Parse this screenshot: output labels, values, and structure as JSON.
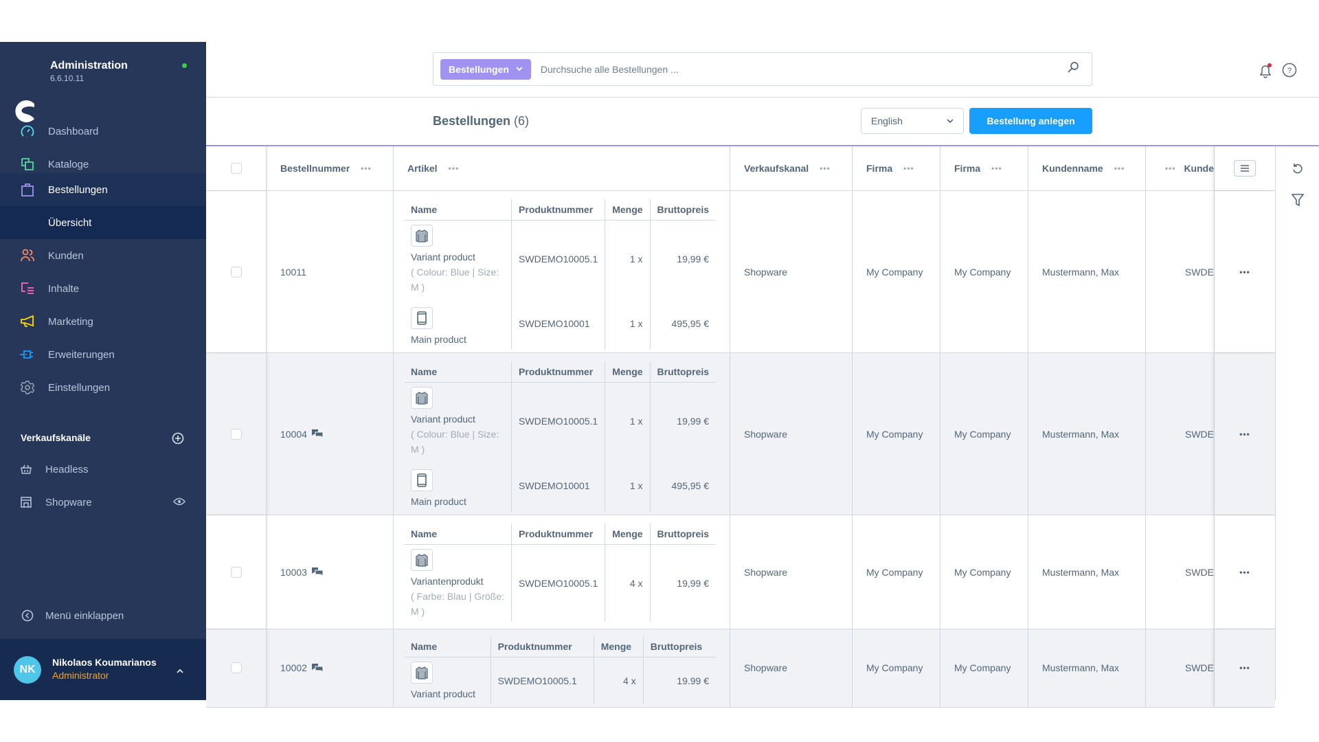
{
  "colors": {
    "sidebar": "#26375a",
    "accent": "#a092f0",
    "primary": "#189eff",
    "status_online": "#37d046",
    "user_role": "#f7a21b",
    "notification_dot": "#de294c"
  },
  "sidebar": {
    "app_title": "Administration",
    "version": "6.6.10.11",
    "items": [
      {
        "label": "Dashboard",
        "icon": "gauge-icon",
        "color": "#57d9f0"
      },
      {
        "label": "Kataloge",
        "icon": "products-icon",
        "color": "#57d9a3"
      },
      {
        "label": "Bestellungen",
        "icon": "shopping-bag-icon",
        "color": "#a092f0",
        "active": true
      },
      {
        "label": "Übersicht",
        "sub": true
      },
      {
        "label": "Kunden",
        "icon": "users-icon",
        "color": "#f88962"
      },
      {
        "label": "Inhalte",
        "icon": "content-icon",
        "color": "#ff68b4"
      },
      {
        "label": "Marketing",
        "icon": "megaphone-icon",
        "color": "#ffd700"
      },
      {
        "label": "Erweiterungen",
        "icon": "plug-icon",
        "color": "#189eff"
      },
      {
        "label": "Einstellungen",
        "icon": "gear-icon",
        "color": "#9aa8b5"
      }
    ],
    "sales_channels_title": "Verkaufskanäle",
    "sales_channels": [
      {
        "label": "Headless",
        "icon": "basket-icon"
      },
      {
        "label": "Shopware",
        "icon": "storefront-icon"
      }
    ],
    "collapse_label": "Menü einklappen",
    "user": {
      "initials": "NK",
      "name": "Nikolaos Koumarianos",
      "role": "Administrator"
    }
  },
  "header": {
    "search_module": "Bestellungen",
    "search_placeholder": "Durchsuche alle Bestellungen ..."
  },
  "page": {
    "title": "Bestellungen",
    "count": "(6)",
    "language": "English",
    "create_button": "Bestellung anlegen"
  },
  "table": {
    "columns": [
      "Bestellnummer",
      "Artikel",
      "Verkaufskanal",
      "Firma",
      "Firma",
      "Kundenname",
      "Kunde"
    ],
    "nested_columns": [
      "Name",
      "Produktnummer",
      "Menge",
      "Bruttopreis"
    ],
    "rows": [
      {
        "order_number": "10011",
        "comment": false,
        "items": [
          {
            "name": "Variant product",
            "variant": "( Colour: Blue | Size: M )",
            "thumb": "shirt-icon",
            "sku": "SWDEMO10005.1",
            "qty": "1 x",
            "price": "19,99 €"
          },
          {
            "name": "Main product",
            "thumb": "phone-icon",
            "sku": "SWDEMO10001",
            "qty": "1 x",
            "price": "495,95 €"
          }
        ],
        "sales_channel": "Shopware",
        "company": "My Company",
        "company2": "My Company",
        "customer": "Mustermann, Max",
        "customer_no": "SWDE"
      },
      {
        "order_number": "10004",
        "comment": true,
        "items": [
          {
            "name": "Variant product",
            "variant": "( Colour: Blue | Size: M )",
            "thumb": "shirt-icon",
            "sku": "SWDEMO10005.1",
            "qty": "1 x",
            "price": "19,99 €"
          },
          {
            "name": "Main product",
            "thumb": "phone-icon",
            "sku": "SWDEMO10001",
            "qty": "1 x",
            "price": "495,95 €"
          }
        ],
        "sales_channel": "Shopware",
        "company": "My Company",
        "company2": "My Company",
        "customer": "Mustermann, Max",
        "customer_no": "SWDE"
      },
      {
        "order_number": "10003",
        "comment": true,
        "items": [
          {
            "name": "Variantenprodukt",
            "variant": "( Farbe: Blau | Größe: M )",
            "thumb": "shirt-icon",
            "sku": "SWDEMO10005.1",
            "qty": "4 x",
            "price": "19,99 €"
          }
        ],
        "sales_channel": "Shopware",
        "company": "My Company",
        "company2": "My Company",
        "customer": "Mustermann, Max",
        "customer_no": "SWDE"
      },
      {
        "order_number": "10002",
        "comment": true,
        "items": [
          {
            "name": "Variant product",
            "thumb": "shirt-icon",
            "sku": "SWDEMO10005.1",
            "qty": "4 x",
            "price": "19.99 €"
          }
        ],
        "sales_channel": "Shopware",
        "company": "My Company",
        "company2": "My Company",
        "customer": "Mustermann, Max",
        "customer_no": "SWDE"
      }
    ]
  }
}
